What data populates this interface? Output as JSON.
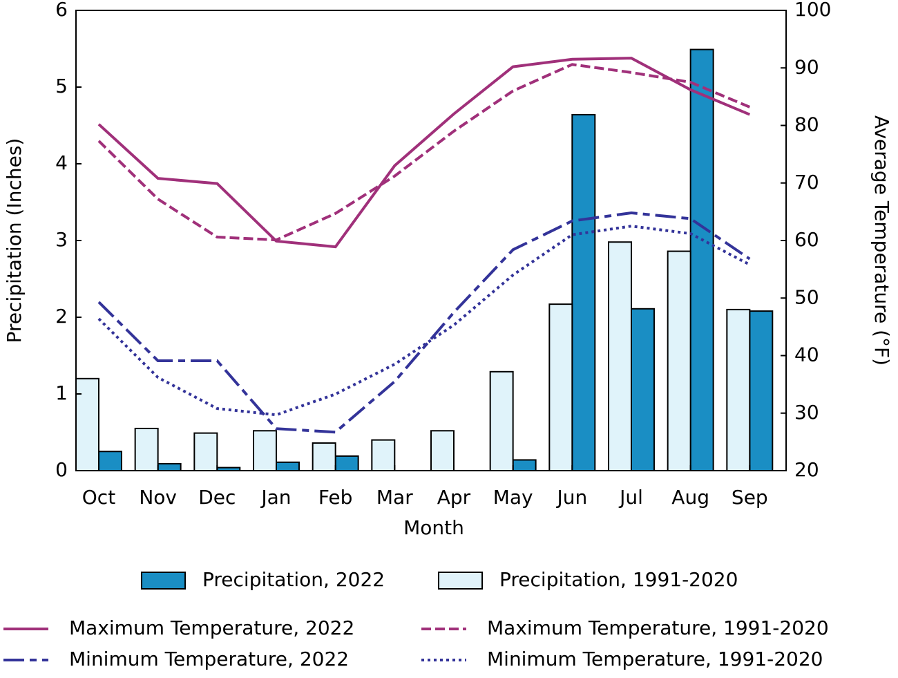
{
  "chart_data": {
    "type": "bar-line",
    "xlabel": "Month",
    "ylabel": "Precipitation (Inches)",
    "y2label": "Average Temperature (°F)",
    "categories": [
      "Oct",
      "Nov",
      "Dec",
      "Jan",
      "Feb",
      "Mar",
      "Apr",
      "May",
      "Jun",
      "Jul",
      "Aug",
      "Sep"
    ],
    "ylim": [
      0,
      6
    ],
    "yticks": [
      0,
      1,
      2,
      3,
      4,
      5,
      6
    ],
    "y2lim": [
      20,
      100
    ],
    "y2ticks": [
      20,
      30,
      40,
      50,
      60,
      70,
      80,
      90,
      100
    ],
    "series": [
      {
        "name": "Precipitation, 2022",
        "type": "bar",
        "color": "#1a8ec4",
        "values": [
          0.25,
          0.09,
          0.04,
          0.11,
          0.19,
          0.0,
          0.0,
          0.14,
          4.64,
          2.11,
          5.49,
          2.08
        ]
      },
      {
        "name": "Precipitation, 1991-2020",
        "type": "bar",
        "color": "#e0f3fa",
        "values": [
          1.2,
          0.55,
          0.49,
          0.52,
          0.36,
          0.4,
          0.52,
          1.29,
          2.17,
          2.98,
          2.86,
          2.1
        ]
      },
      {
        "name": "Maximum Temperature, 2022",
        "type": "line",
        "axis": "y2",
        "color": "#a0307a",
        "linestyle": "solid",
        "values": [
          80.2,
          70.8,
          69.9,
          59.9,
          58.9,
          73,
          82,
          90.2,
          91.5,
          91.7,
          86.2,
          81.9
        ]
      },
      {
        "name": "Maximum Temperature, 1991-2020",
        "type": "line",
        "axis": "y2",
        "color": "#a0307a",
        "linestyle": "dashed",
        "values": [
          77.3,
          67.2,
          60.6,
          60.1,
          64.7,
          71.2,
          79,
          86,
          90.6,
          89.2,
          87.5,
          83.2
        ]
      },
      {
        "name": "Minimum Temperature, 2022",
        "type": "line",
        "axis": "y2",
        "color": "#333399",
        "linestyle": "longdash",
        "values": [
          49.3,
          39.1,
          39.1,
          27.3,
          26.7,
          35.5,
          47.5,
          58.4,
          63.4,
          64.8,
          63.8,
          56.8
        ]
      },
      {
        "name": "Minimum Temperature, 1991-2020",
        "type": "line",
        "axis": "y2",
        "color": "#333399",
        "linestyle": "dotted",
        "values": [
          46.4,
          36.2,
          30.8,
          29.7,
          33.3,
          38.5,
          45.3,
          54,
          61,
          62.5,
          61.2,
          55.8
        ]
      }
    ]
  }
}
